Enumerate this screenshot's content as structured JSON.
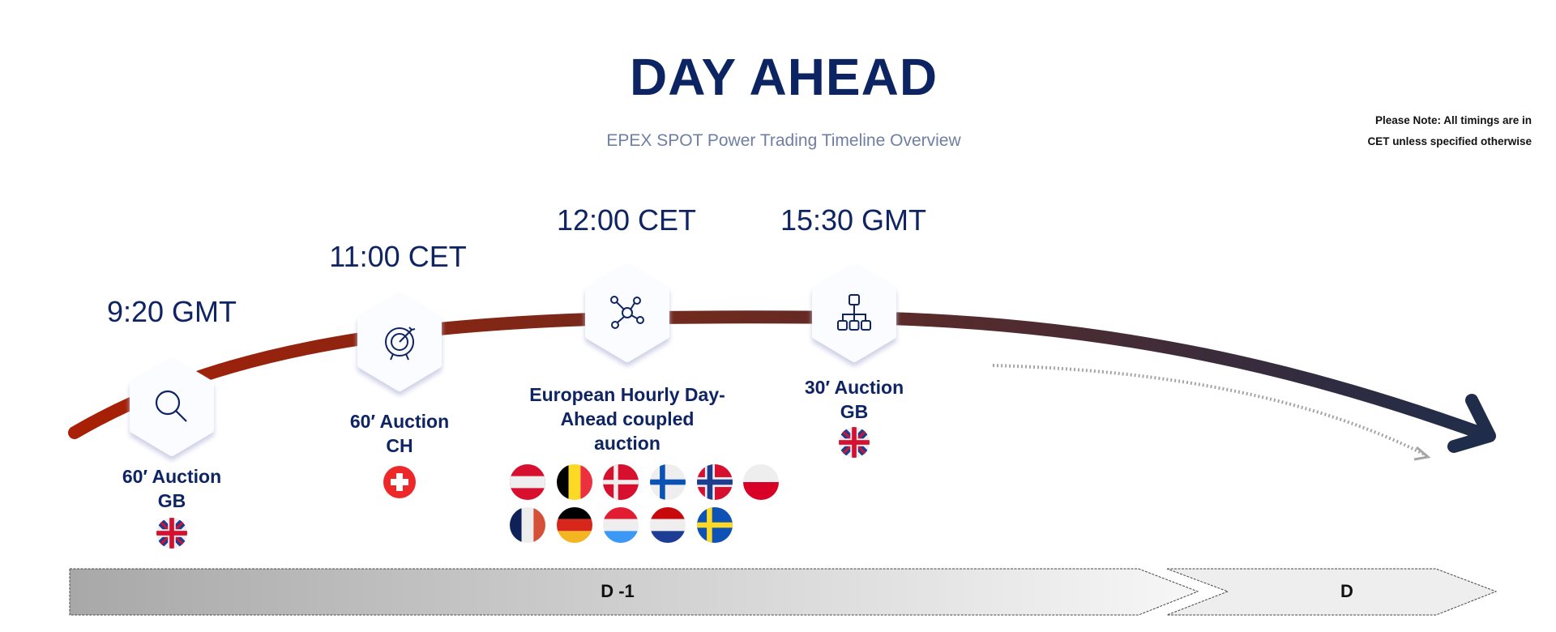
{
  "header": {
    "title": "DAY AHEAD",
    "subtitle": "EPEX SPOT Power Trading Timeline Overview",
    "note_line1": "Please Note: All timings are in",
    "note_line2": "CET unless specified otherwise"
  },
  "colors": {
    "navy": "#0f2563",
    "curve_start": "#a82005",
    "curve_end": "#1f2d4a"
  },
  "milestones": [
    {
      "time": "9:20 GMT",
      "icon": "search-icon",
      "label_line1": "60′ Auction",
      "label_line2": "GB",
      "flags": [
        "gb"
      ]
    },
    {
      "time": "11:00 CET",
      "icon": "target-icon",
      "label_line1": "60′ Auction",
      "label_line2": "CH",
      "flags": [
        "ch"
      ]
    },
    {
      "time": "12:00 CET",
      "icon": "network-icon",
      "label_line1": "European Hourly Day-",
      "label_line2": "Ahead coupled",
      "label_line3": "auction",
      "flags": [
        "at",
        "be",
        "dk",
        "fi",
        "no",
        "pl",
        "fr",
        "de",
        "lu",
        "nl",
        "se"
      ]
    },
    {
      "time": "15:30 GMT",
      "icon": "hierarchy-icon",
      "label_line1": "30′ Auction",
      "label_line2": "GB",
      "flags": [
        "gb"
      ]
    }
  ],
  "phases": [
    {
      "label": "D -1"
    },
    {
      "label": "D"
    }
  ]
}
